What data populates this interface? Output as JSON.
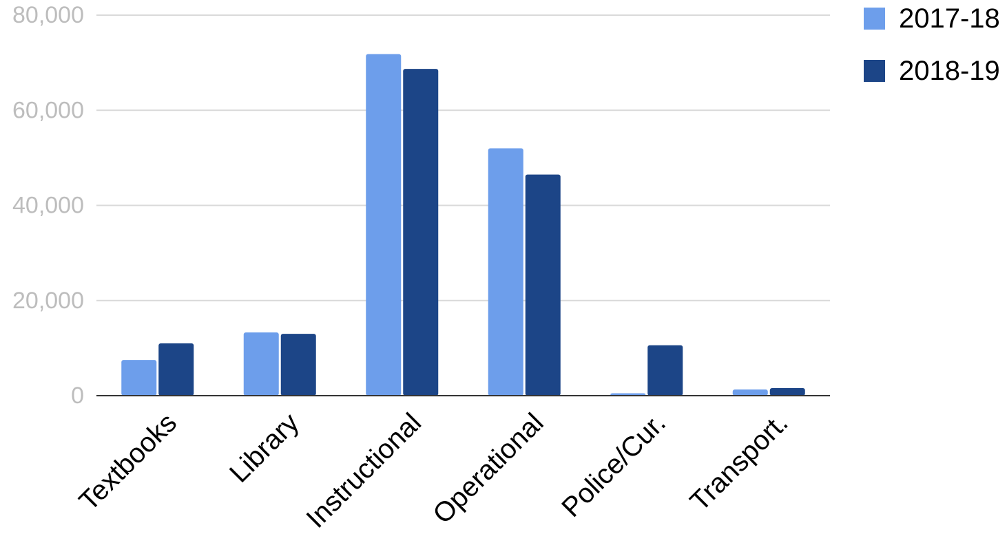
{
  "chart_data": {
    "type": "bar",
    "title": "",
    "xlabel": "",
    "ylabel": "",
    "categories": [
      "Textbooks",
      "Library",
      "Instructional",
      "Operational",
      "Police/Cur.",
      "Transport."
    ],
    "series": [
      {
        "name": "2017-18",
        "color": "#6d9eeb",
        "values": [
          7500,
          13300,
          71800,
          52000,
          500,
          1300
        ]
      },
      {
        "name": "2018-19",
        "color": "#1c4587",
        "values": [
          11000,
          13000,
          68700,
          46500,
          10600,
          1600
        ]
      }
    ],
    "ylim": [
      0,
      80000
    ],
    "yticks": [
      "0",
      "20,000",
      "40,000",
      "60,000",
      "80,000"
    ],
    "grid": true,
    "legend": "top-right"
  }
}
